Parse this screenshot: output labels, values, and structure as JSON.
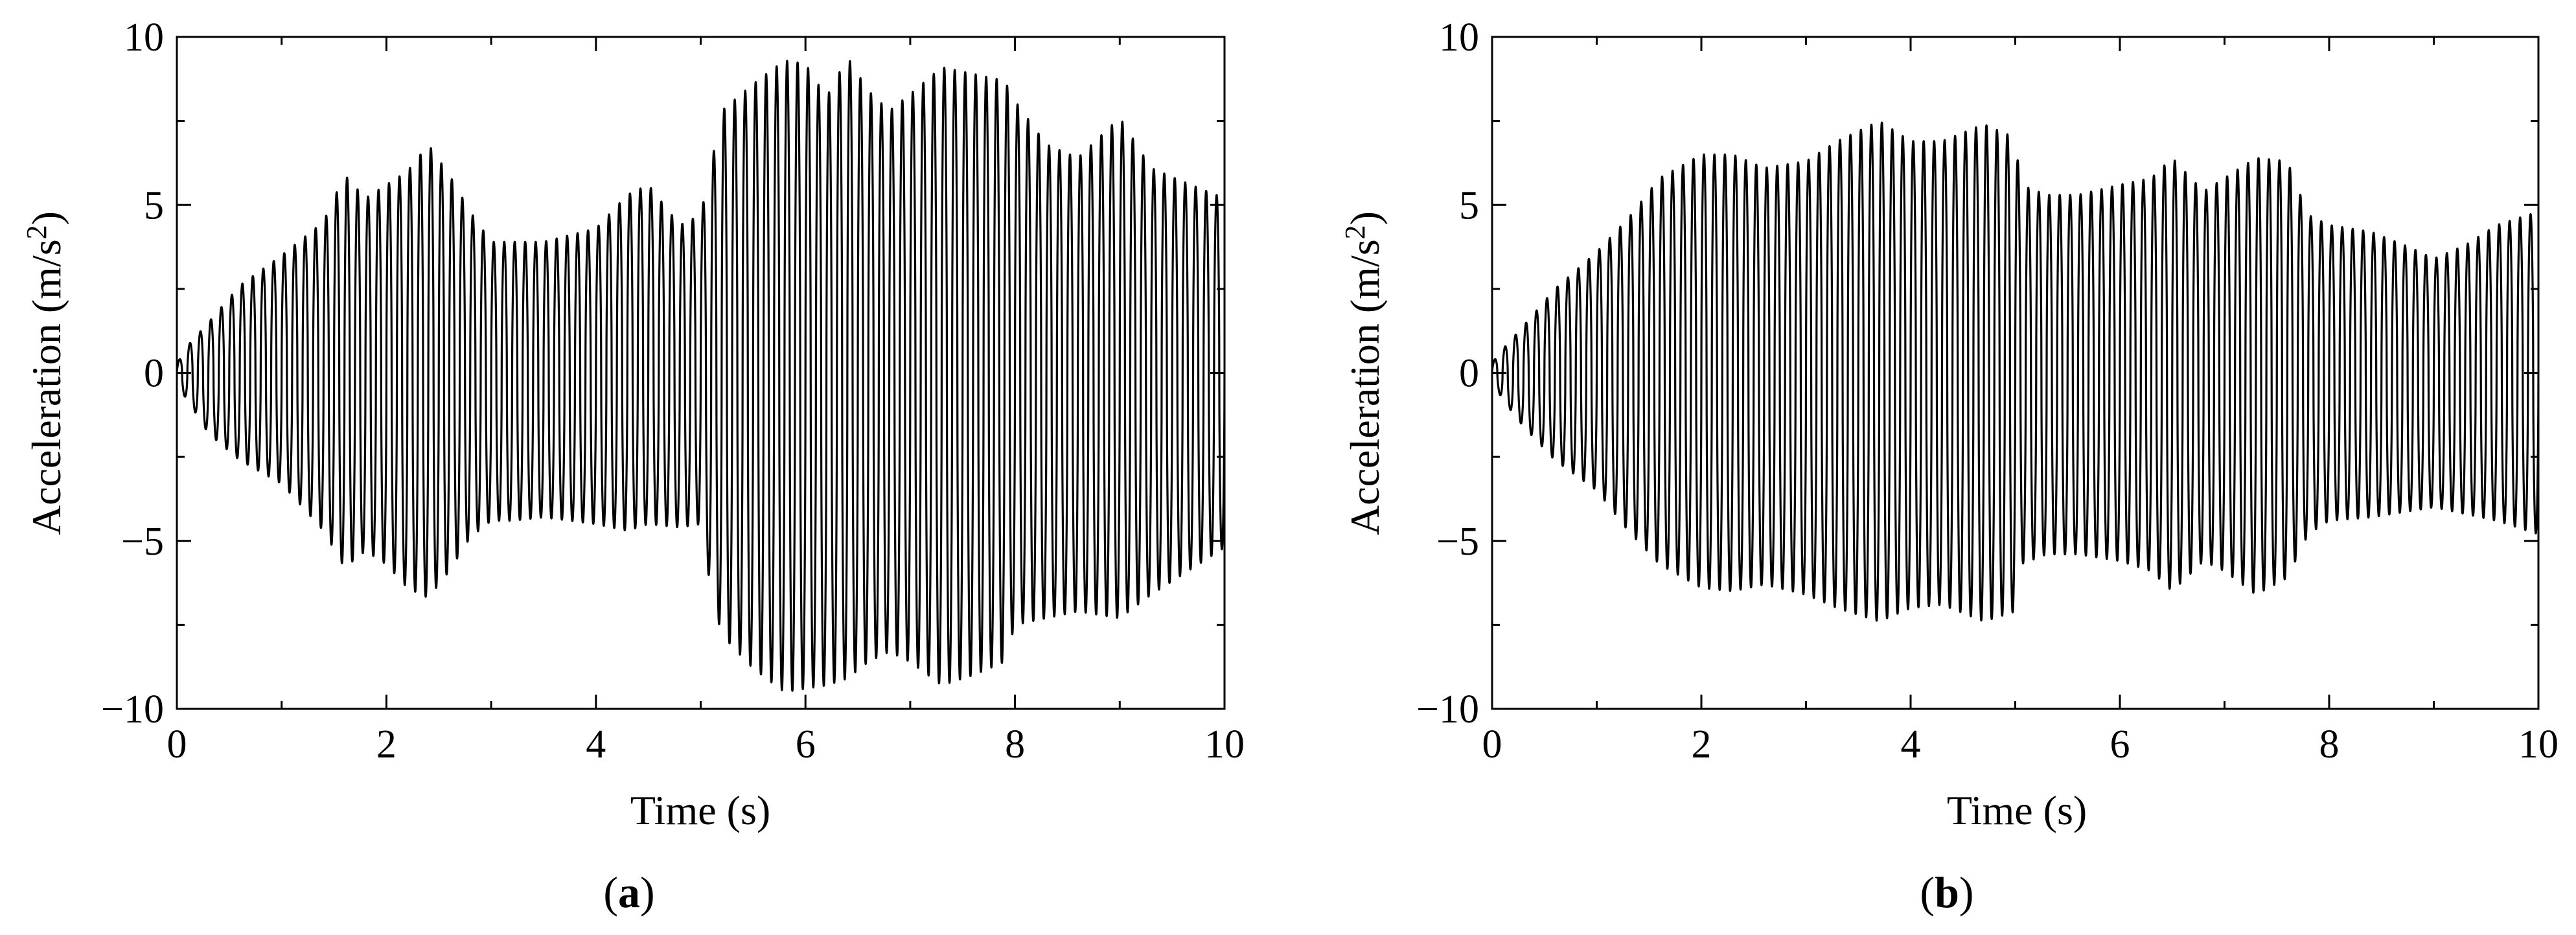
{
  "chart_data": [
    {
      "type": "line",
      "panel_label": "a",
      "xlabel": "Time (s)",
      "ylabel": "Acceleration (m/s²)",
      "xlim": [
        0,
        10
      ],
      "ylim": [
        -10,
        10
      ],
      "xticks": [
        "0",
        "2",
        "4",
        "6",
        "8",
        "10"
      ],
      "yticks": [
        "10",
        "5",
        "0",
        "−5",
        "−10"
      ],
      "grid": false,
      "series": [
        {
          "color": "#000000",
          "frequency_hz": 10,
          "envelope": {
            "t": [
              0,
              0.05,
              0.1,
              0.3,
              0.6,
              1.0,
              1.4,
              1.6,
              1.8,
              2.0,
              2.2,
              2.4,
              2.6,
              2.8,
              3.0,
              3.2,
              3.5,
              4.0,
              4.3,
              4.5,
              4.8,
              5.0,
              5.1,
              5.2,
              5.5,
              5.8,
              6.0,
              6.2,
              6.4,
              6.6,
              6.8,
              7.0,
              7.3,
              7.6,
              7.9,
              8.0,
              8.3,
              8.6,
              9.0,
              9.3,
              9.6,
              10.0
            ],
            "upper": [
              0.3,
              0.5,
              0.8,
              1.5,
              2.6,
              3.5,
              4.5,
              5.9,
              5.2,
              5.6,
              6.0,
              6.8,
              5.9,
              4.8,
              3.9,
              3.9,
              3.9,
              4.3,
              5.3,
              5.6,
              4.4,
              4.7,
              6.2,
              7.8,
              8.6,
              9.3,
              9.2,
              8.2,
              9.4,
              8.4,
              7.8,
              8.3,
              9.1,
              8.9,
              8.7,
              8.1,
              6.8,
              6.4,
              7.6,
              6.1,
              5.7,
              5.2
            ],
            "lower": [
              -0.3,
              -0.6,
              -0.8,
              -1.8,
              -2.6,
              -3.3,
              -4.7,
              -5.8,
              -5.3,
              -5.7,
              -6.4,
              -6.7,
              -5.9,
              -4.9,
              -4.4,
              -4.4,
              -4.3,
              -4.5,
              -4.7,
              -4.5,
              -4.6,
              -4.5,
              -6.5,
              -7.8,
              -8.8,
              -9.5,
              -9.4,
              -9.3,
              -9.1,
              -8.6,
              -8.3,
              -8.6,
              -9.3,
              -9.0,
              -8.6,
              -7.5,
              -7.3,
              -7.1,
              -7.3,
              -6.6,
              -6.0,
              -5.2
            ]
          }
        }
      ]
    },
    {
      "type": "line",
      "panel_label": "b",
      "xlabel": "Time (s)",
      "ylabel": "Acceleration (m/s²)",
      "xlim": [
        0,
        10
      ],
      "ylim": [
        -10,
        10
      ],
      "xticks": [
        "0",
        "2",
        "4",
        "6",
        "8",
        "10"
      ],
      "yticks": [
        "10",
        "5",
        "0",
        "−5",
        "−10"
      ],
      "grid": false,
      "series": [
        {
          "color": "#000000",
          "frequency_hz": 10,
          "envelope": {
            "t": [
              0,
              0.05,
              0.1,
              0.3,
              0.6,
              1.0,
              1.3,
              1.6,
              2.0,
              2.3,
              2.6,
              3.0,
              3.3,
              3.7,
              4.0,
              4.3,
              4.7,
              5.0,
              5.05,
              5.3,
              5.6,
              6.0,
              6.3,
              6.5,
              6.8,
              7.0,
              7.3,
              7.6,
              7.8,
              8.0,
              8.4,
              8.8,
              9.0,
              9.3,
              9.6,
              10.0
            ],
            "upper": [
              0.3,
              0.5,
              0.7,
              1.4,
              2.5,
              3.6,
              4.6,
              5.8,
              6.5,
              6.5,
              6.1,
              6.3,
              6.9,
              7.5,
              6.9,
              6.9,
              7.4,
              7.0,
              5.6,
              5.3,
              5.3,
              5.6,
              5.8,
              6.4,
              5.4,
              5.8,
              6.4,
              6.3,
              4.7,
              4.4,
              4.2,
              3.7,
              3.4,
              3.8,
              4.4,
              4.8
            ],
            "lower": [
              -0.3,
              -0.5,
              -0.8,
              -1.6,
              -2.6,
              -3.5,
              -4.7,
              -5.7,
              -6.4,
              -6.5,
              -6.3,
              -6.6,
              -7.0,
              -7.4,
              -7.0,
              -6.9,
              -7.4,
              -7.1,
              -5.7,
              -5.4,
              -5.4,
              -5.6,
              -5.9,
              -6.5,
              -5.6,
              -5.9,
              -6.6,
              -6.1,
              -4.8,
              -4.4,
              -4.3,
              -4.1,
              -4.0,
              -4.2,
              -4.4,
              -4.8
            ]
          }
        }
      ]
    }
  ]
}
